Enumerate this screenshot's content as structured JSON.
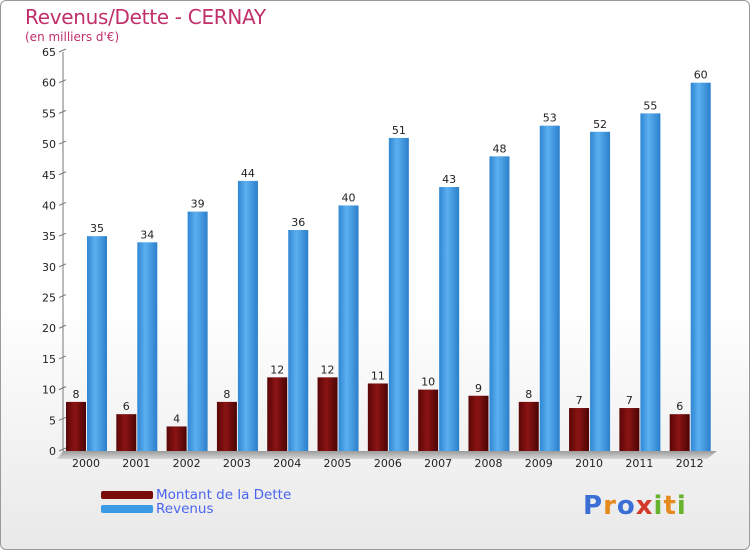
{
  "title": "Revenus/Dette - CERNAY",
  "unit": "(en milliers d'€)",
  "logo": "Proxiti",
  "colors": {
    "dette": "#7a0c0c",
    "revenus": "#3a9ae4",
    "title": "#c0306a",
    "legend_text": "#4a64ee"
  },
  "chart_data": {
    "type": "bar",
    "title": "Revenus/Dette - CERNAY",
    "ylabel": "(en milliers d'€)",
    "xlabel": "",
    "ylim": [
      0,
      65
    ],
    "ytick_step": 5,
    "grid": false,
    "legend_position": "bottom-left",
    "categories": [
      "2000",
      "2001",
      "2002",
      "2003",
      "2004",
      "2005",
      "2006",
      "2007",
      "2008",
      "2009",
      "2010",
      "2011",
      "2012"
    ],
    "series": [
      {
        "name": "Montant de la Dette",
        "values": [
          8,
          6,
          4,
          8,
          12,
          12,
          11,
          10,
          9,
          8,
          7,
          7,
          6
        ]
      },
      {
        "name": "Revenus",
        "values": [
          35,
          34,
          39,
          44,
          36,
          40,
          51,
          43,
          48,
          53,
          52,
          55,
          60
        ]
      }
    ]
  }
}
